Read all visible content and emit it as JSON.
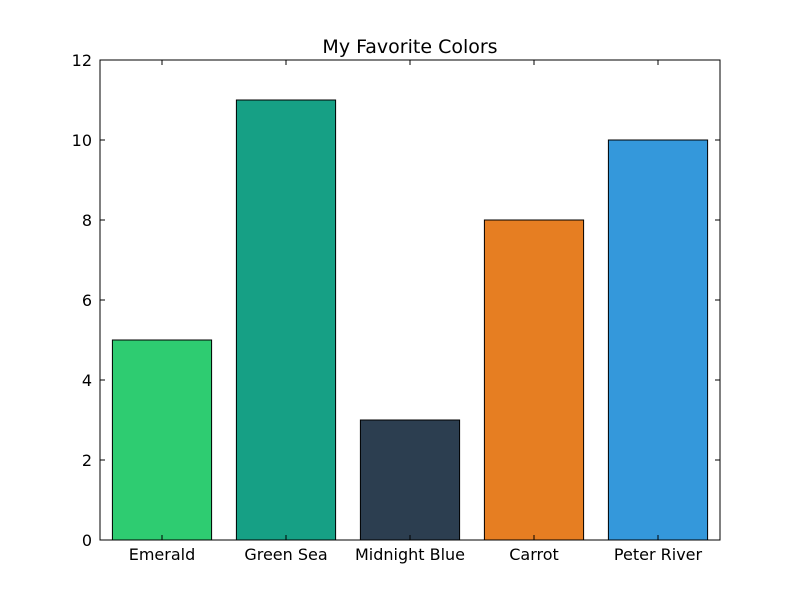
{
  "chart_data": {
    "type": "bar",
    "title": "My Favorite Colors",
    "xlabel": "",
    "ylabel": "",
    "categories": [
      "Emerald",
      "Green Sea",
      "Midnight Blue",
      "Carrot",
      "Peter River"
    ],
    "values": [
      5,
      11,
      3,
      8,
      10
    ],
    "colors": [
      "#2ecc71",
      "#16a085",
      "#2c3e50",
      "#e67e22",
      "#3498db"
    ],
    "ylim": [
      0,
      12
    ],
    "yticks": [
      "0",
      "2",
      "4",
      "6",
      "8",
      "10",
      "12"
    ],
    "grid": false,
    "legend": "none"
  }
}
